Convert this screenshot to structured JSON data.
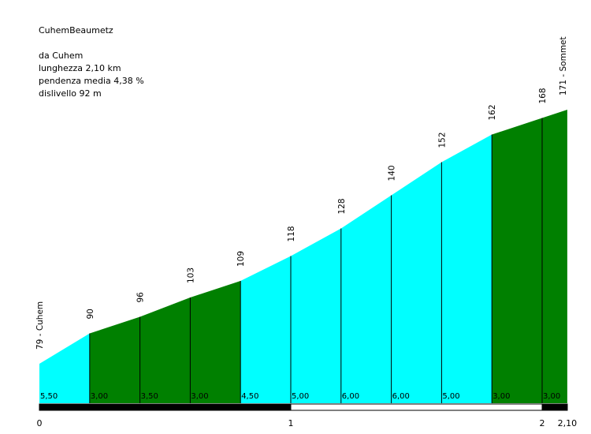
{
  "title": "CuhemBeaumetz",
  "start_label": "da Cuhem",
  "length_label": "lunghezza 2,10 km",
  "avg_grade_label": "pendenza media 4,38 %",
  "elevation_gain_label": "dislivello 92 m",
  "chart_data": {
    "type": "area",
    "title": "CuhemBeaumetz",
    "xlabel": "",
    "ylabel": "",
    "x_unit": "km",
    "x": [
      0,
      0.2,
      0.4,
      0.6,
      0.8,
      1.0,
      1.2,
      1.4,
      1.6,
      1.8,
      2.0,
      2.1
    ],
    "elevations": [
      79,
      90,
      96,
      103,
      109,
      118,
      128,
      140,
      152,
      162,
      168,
      171
    ],
    "point_labels": [
      "79 - Cuhem",
      "90",
      "96",
      "103",
      "109",
      "118",
      "128",
      "140",
      "152",
      "162",
      "168",
      "171 - Sommet"
    ],
    "segment_grades": [
      "5,50",
      "3,00",
      "3,50",
      "3,00",
      "4,50",
      "5,00",
      "6,00",
      "6,00",
      "5,00",
      "3,00",
      "3,00"
    ],
    "segment_colors": [
      "#00ffff",
      "#008000",
      "#008000",
      "#008000",
      "#00ffff",
      "#00ffff",
      "#00ffff",
      "#00ffff",
      "#00ffff",
      "#008000",
      "#008000"
    ],
    "km_ticks": [
      {
        "x": 0,
        "label": "0"
      },
      {
        "x": 1,
        "label": "1"
      },
      {
        "x": 2,
        "label": "2"
      },
      {
        "x": 2.1,
        "label": "2,10"
      }
    ],
    "xlim": [
      0,
      2.1
    ]
  }
}
